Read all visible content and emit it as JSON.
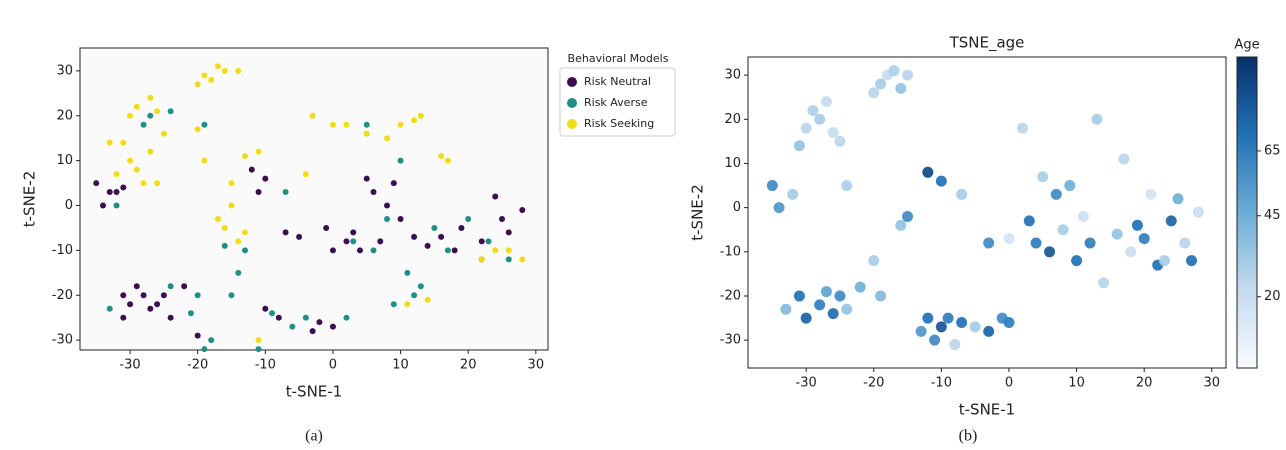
{
  "chart_data": [
    {
      "type": "scatter",
      "caption": "(a)",
      "xlabel": "t-SNE-1",
      "ylabel": "t-SNE-2",
      "legend_title": "Behavioral Models",
      "legend": "upper right outside",
      "xlim": [
        -37.4,
        31.8
      ],
      "ylim": [
        -32.2,
        35.1
      ],
      "xticks": [
        -30,
        -20,
        -10,
        0,
        10,
        20,
        30
      ],
      "yticks": [
        -30,
        -20,
        -10,
        0,
        10,
        20,
        30
      ],
      "series": [
        {
          "name": "Risk Neutral",
          "color": "#3b0f4f",
          "x": [
            -35,
            -34,
            -33,
            -32,
            -31,
            -31,
            -30,
            -29,
            -28,
            -27,
            -26,
            -25,
            -24,
            -31,
            -22,
            -20,
            -12,
            -10,
            -11,
            -7,
            -5,
            -3,
            -2,
            0,
            -8,
            -10,
            3,
            4,
            6,
            7,
            8,
            9,
            10,
            12,
            14,
            16,
            18,
            19,
            22,
            24,
            25,
            26,
            28,
            22,
            2,
            5,
            -1,
            0
          ],
          "y": [
            5,
            0,
            3,
            3,
            4,
            -20,
            -22,
            -18,
            -20,
            -23,
            -22,
            -20,
            -25,
            -25,
            -18,
            -29,
            8,
            6,
            3,
            -6,
            -7,
            -28,
            -26,
            -27,
            -25,
            -23,
            -6,
            -10,
            3,
            -8,
            0,
            5,
            -3,
            -7,
            -9,
            -7,
            -10,
            -5,
            -8,
            2,
            -3,
            -6,
            -1,
            -12,
            -8,
            6,
            -5,
            -10
          ]
        },
        {
          "name": "Risk Averse",
          "color": "#1f8f8a",
          "x": [
            -28,
            -27,
            -24,
            -19,
            -33,
            -32,
            -24,
            -21,
            -20,
            -19,
            -18,
            -15,
            -14,
            -11,
            -9,
            -7,
            -6,
            -4,
            3,
            5,
            6,
            8,
            10,
            11,
            12,
            13,
            15,
            17,
            20,
            23,
            26,
            2,
            9,
            -13,
            -16
          ],
          "y": [
            18,
            20,
            21,
            18,
            -23,
            0,
            -18,
            -24,
            -20,
            -32,
            -30,
            -20,
            -15,
            -32,
            -24,
            3,
            -27,
            -25,
            -8,
            18,
            -10,
            -3,
            10,
            -15,
            -20,
            -18,
            -5,
            -10,
            -3,
            -8,
            -12,
            -25,
            -22,
            -10,
            -9
          ]
        },
        {
          "name": "Risk Seeking",
          "color": "#f2dc18",
          "x": [
            -20,
            -19,
            -17,
            -16,
            -14,
            -18,
            -30,
            -29,
            -27,
            -26,
            -25,
            -31,
            -33,
            -30,
            -29,
            -28,
            -27,
            -26,
            -32,
            -20,
            -19,
            -17,
            -16,
            -15,
            -14,
            -13,
            -15,
            -13,
            -11,
            -4,
            -3,
            0,
            2,
            5,
            8,
            10,
            12,
            13,
            16,
            17,
            22,
            24,
            26,
            28,
            11,
            14,
            -11
          ],
          "y": [
            27,
            29,
            31,
            30,
            30,
            28,
            20,
            22,
            24,
            21,
            16,
            14,
            14,
            10,
            8,
            5,
            12,
            5,
            7,
            17,
            10,
            -3,
            -5,
            0,
            -8,
            -6,
            5,
            11,
            12,
            7,
            20,
            18,
            18,
            16,
            15,
            18,
            19,
            20,
            11,
            10,
            -12,
            -10,
            -10,
            -12,
            -22,
            -21,
            -30
          ]
        }
      ]
    },
    {
      "type": "colorscatter",
      "title": "TSNE_age",
      "caption": "(b)",
      "xlabel": "t-SNE-1",
      "ylabel": "t-SNE-2",
      "colorbar_label": "Age",
      "colormap": [
        "#f7fbff",
        "#c6dbef",
        "#6baed6",
        "#2171b5",
        "#08306b"
      ],
      "clim": [
        -2,
        94
      ],
      "cticks": [
        20,
        45,
        65
      ],
      "xlim": [
        -38.6,
        32.1
      ],
      "ylim": [
        -36.3,
        34.1
      ],
      "xticks": [
        -30,
        -20,
        -10,
        0,
        10,
        20,
        30
      ],
      "yticks": [
        -30,
        -20,
        -10,
        0,
        10,
        20,
        30
      ],
      "x": [
        -35,
        -34,
        -32,
        -31,
        -30,
        -29,
        -28,
        -27,
        -26,
        -25,
        -24,
        -20,
        -19,
        -18,
        -17,
        -16,
        -15,
        -33,
        -31,
        -30,
        -28,
        -27,
        -26,
        -25,
        -24,
        -22,
        -20,
        -19,
        -13,
        -12,
        -11,
        -10,
        -9,
        -8,
        -7,
        -5,
        -3,
        -1,
        0,
        -12,
        -10,
        -7,
        -3,
        0,
        2,
        3,
        4,
        5,
        6,
        7,
        8,
        9,
        10,
        11,
        12,
        13,
        14,
        16,
        17,
        18,
        19,
        20,
        21,
        22,
        23,
        24,
        25,
        26,
        27,
        28,
        -16,
        -15
      ],
      "y": [
        5,
        0,
        3,
        14,
        18,
        22,
        20,
        24,
        17,
        15,
        5,
        26,
        28,
        30,
        31,
        27,
        30,
        -23,
        -20,
        -25,
        -22,
        -19,
        -24,
        -20,
        -23,
        -18,
        -12,
        -20,
        -28,
        -25,
        -30,
        -27,
        -25,
        -31,
        -26,
        -27,
        -28,
        -25,
        -26,
        8,
        6,
        3,
        -8,
        -7,
        18,
        -3,
        -8,
        7,
        -10,
        3,
        -5,
        5,
        -12,
        -2,
        -8,
        20,
        -17,
        -6,
        11,
        -10,
        -4,
        -7,
        3,
        -13,
        -12,
        -3,
        2,
        -8,
        -12,
        -1,
        -4,
        -2
      ],
      "c": [
        60,
        55,
        30,
        35,
        25,
        28,
        30,
        22,
        20,
        25,
        28,
        25,
        30,
        22,
        28,
        35,
        25,
        40,
        70,
        75,
        65,
        50,
        72,
        60,
        35,
        45,
        30,
        40,
        55,
        70,
        60,
        80,
        65,
        25,
        70,
        30,
        75,
        60,
        65,
        85,
        70,
        30,
        60,
        15,
        25,
        70,
        65,
        30,
        80,
        60,
        30,
        45,
        70,
        20,
        65,
        30,
        25,
        35,
        25,
        20,
        70,
        65,
        15,
        70,
        30,
        75,
        45,
        25,
        70,
        20,
        35,
        60
      ]
    }
  ]
}
